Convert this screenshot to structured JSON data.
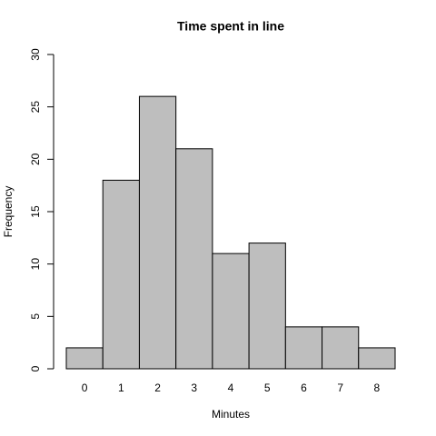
{
  "chart_data": {
    "type": "bar",
    "title": "Time spent in line",
    "x_label": "Minutes",
    "y_label": "Frequency",
    "categories": [
      "0",
      "1",
      "2",
      "3",
      "4",
      "5",
      "6",
      "7",
      "8"
    ],
    "values": [
      2,
      18,
      26,
      21,
      11,
      12,
      4,
      4,
      2
    ],
    "color": "#bebebe",
    "ylim": [
      0,
      30
    ],
    "yticks": [
      0,
      5,
      10,
      15,
      20,
      25,
      30
    ],
    "grid": false
  }
}
